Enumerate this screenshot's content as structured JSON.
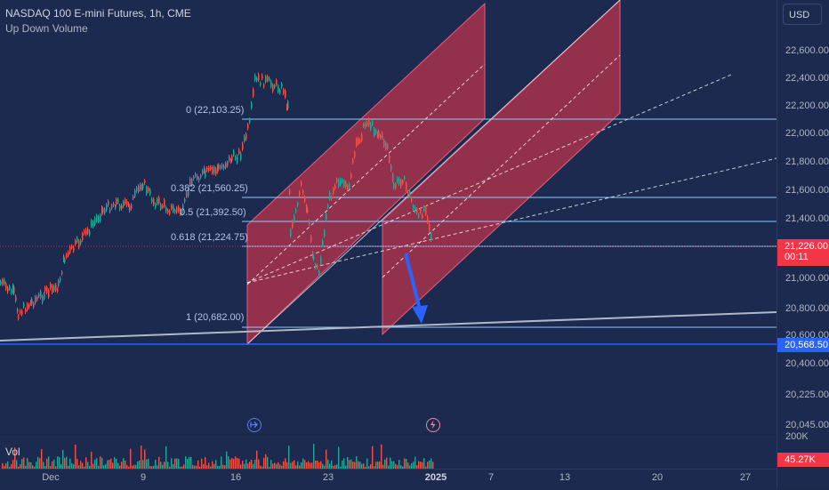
{
  "header": {
    "title": "NASDAQ 100 E-mini Futures, 1h, CME",
    "indicator": "Up Down Volume"
  },
  "currency_button": "USD",
  "price_axis": {
    "ticks": [
      "22,600.00",
      "22,400.00",
      "22,200.00",
      "22,000.00",
      "21,800.00",
      "21,600.00",
      "21,400.00",
      "21,000.00",
      "20,800.00",
      "20,600.00",
      "20,400.00",
      "20,225.00",
      "20,045.00",
      "200K"
    ]
  },
  "current_price": {
    "value": "21,226.00",
    "countdown": "00:11",
    "color": "#f23645"
  },
  "line_price": {
    "value": "20,568.50",
    "color": "#2962ff"
  },
  "volume_tag": {
    "value": "45.27K",
    "color": "#f23645"
  },
  "volume_label": "Vol",
  "time_axis": {
    "ticks": [
      "Dec",
      "9",
      "16",
      "23",
      "2025",
      "7",
      "13",
      "20",
      "27"
    ]
  },
  "fib_levels": [
    {
      "label": "0 (22,103.25)"
    },
    {
      "label": "0.382 (21,560.25)"
    },
    {
      "label": "0.5 (21,392.50)"
    },
    {
      "label": "0.618 (21,224.75)"
    },
    {
      "label": "1 (20,682.00)"
    }
  ],
  "chart_icons": [
    "replay-icon",
    "lightning-icon"
  ],
  "colors": {
    "background": "#1b2a4e",
    "up": "#26a69a",
    "down": "#ef5350",
    "channel": "#c2344e",
    "fib": "#90caf9"
  }
}
